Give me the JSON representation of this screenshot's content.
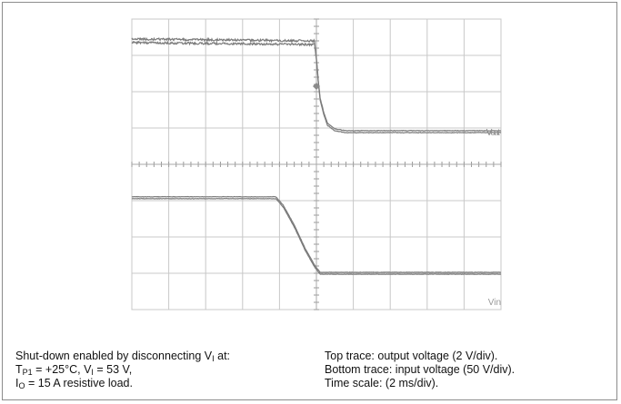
{
  "caption": {
    "left": {
      "line1_prefix": "Shut-down enabled by disconnecting V",
      "line1_sub": "I",
      "line1_suffix": " at:",
      "line2_a": "T",
      "line2_a_sub": "P1",
      "line2_b": " = +25°C, V",
      "line2_b_sub": "I",
      "line2_c": " = 53 V,",
      "line3_a": "I",
      "line3_a_sub": "O",
      "line3_b": " = 15 A resistive load."
    },
    "right": {
      "line1": "Top trace: output voltage (2 V/div).",
      "line2": "Bottom trace: input voltage (50 V/div).",
      "line3": "Time scale: (2 ms/div)."
    }
  },
  "chart_data": {
    "type": "line",
    "grid": true,
    "divisions_x": 10,
    "divisions_y": 8,
    "x_unit_per_div": "2 ms",
    "xlim_div": [
      0,
      10
    ],
    "ylim_div": [
      0,
      8
    ],
    "trace_color": "#7a7a7a",
    "grid_color": "#c8c8c8",
    "series": [
      {
        "name": "Vout",
        "x": [
          0,
          4.95,
          5.0,
          5.05,
          5.1,
          5.2,
          5.3,
          5.5,
          5.8,
          6.2,
          10
        ],
        "y": [
          7.4,
          7.35,
          6.9,
          6.3,
          5.8,
          5.4,
          5.1,
          4.95,
          4.9,
          4.9,
          4.9
        ],
        "noise": 0.12
      },
      {
        "name": "Vin",
        "x": [
          0,
          3.9,
          4.1,
          4.4,
          4.7,
          4.95,
          5.1,
          10
        ],
        "y": [
          3.08,
          3.08,
          2.85,
          2.3,
          1.65,
          1.2,
          1.0,
          1.0
        ],
        "noise": 0.04
      }
    ],
    "markers": [
      {
        "x": 5.0,
        "y": 6.15
      }
    ]
  }
}
